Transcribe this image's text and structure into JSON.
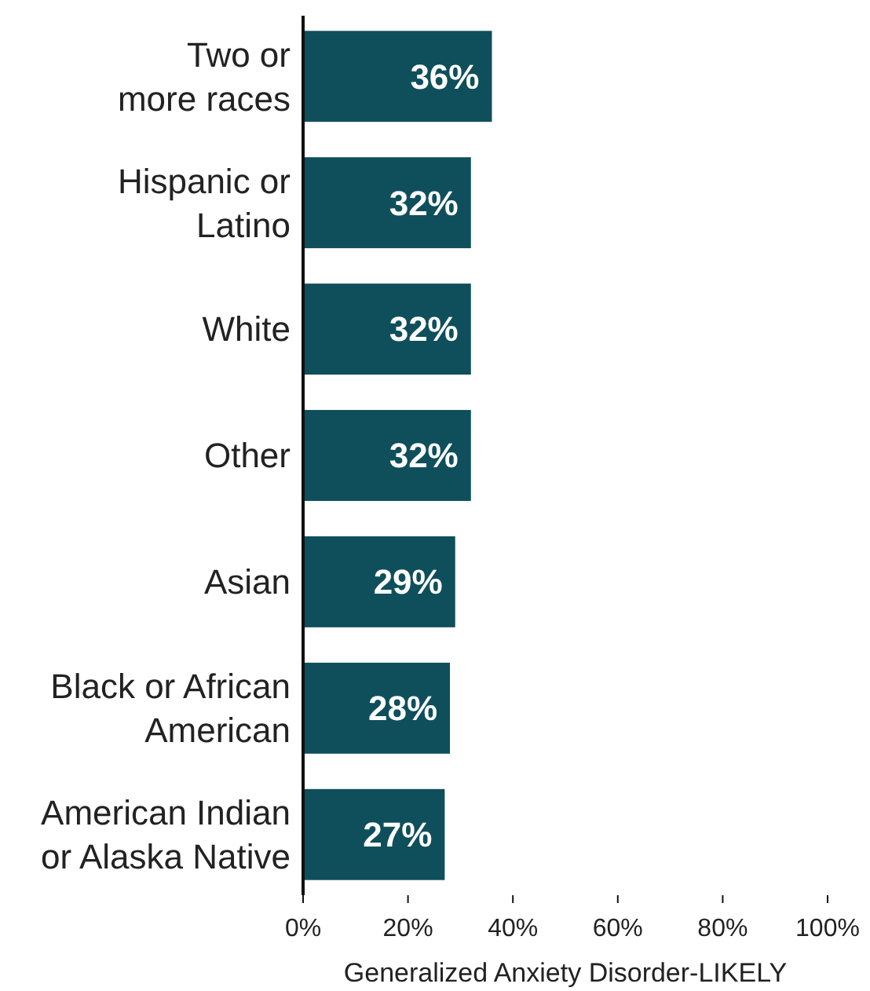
{
  "chart_data": {
    "type": "bar",
    "orientation": "horizontal",
    "xlabel": "Generalized Anxiety Disorder-LIKELY",
    "categories": [
      "Two or\nmore races",
      "Hispanic or\nLatino",
      "White",
      "Other",
      "Asian",
      "Black or African\nAmerican",
      "American Indian\nor Alaska Native"
    ],
    "values": [
      36,
      32,
      32,
      32,
      29,
      28,
      27
    ],
    "value_labels": [
      "36%",
      "32%",
      "32%",
      "32%",
      "29%",
      "28%",
      "27%"
    ],
    "color": "#0f4f5b",
    "xlim": [
      0,
      100
    ],
    "xticks": [
      {
        "value": 0,
        "label": "0%"
      },
      {
        "value": 20,
        "label": "20%"
      },
      {
        "value": 40,
        "label": "40%"
      },
      {
        "value": 60,
        "label": "60%"
      },
      {
        "value": 80,
        "label": "80%"
      },
      {
        "value": 100,
        "label": "100%"
      }
    ],
    "grid": false
  }
}
